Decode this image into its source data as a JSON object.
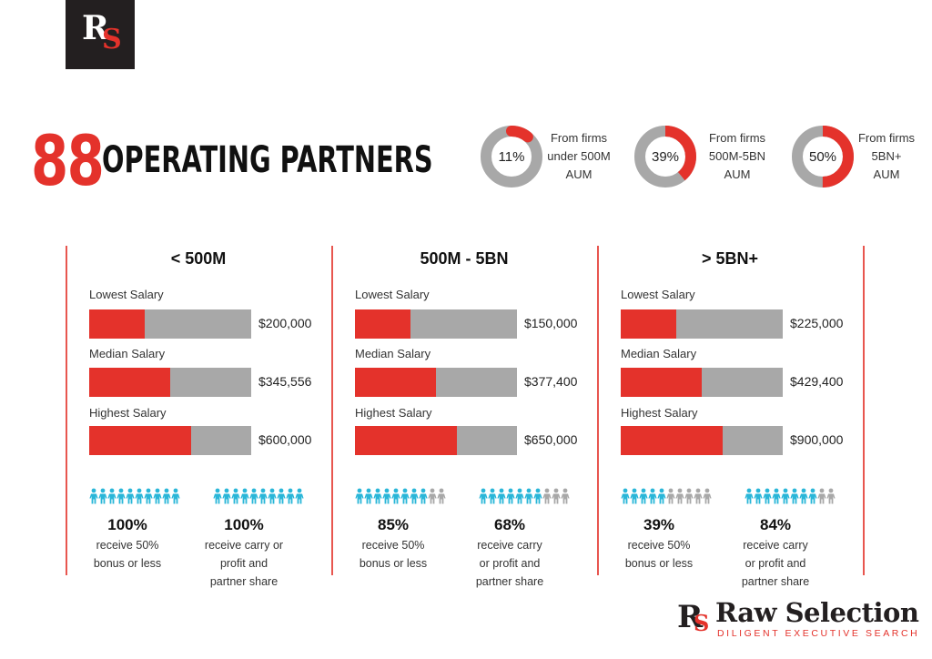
{
  "brand": {
    "logo_mark_r": "R",
    "logo_mark_s": "S",
    "name": "Raw Selection",
    "tagline": "DILIGENT EXECUTIVE SEARCH"
  },
  "headline": {
    "count": "88",
    "title": "OPERATING PARTNERS"
  },
  "colors": {
    "accent_red": "#e4322b",
    "neutral_gray": "#a8a8a8",
    "people_blue": "#29b6d8",
    "logo_dark": "#231f20"
  },
  "chart_data": [
    {
      "type": "pie",
      "title": "Operating partners by firm AUM",
      "slices": [
        {
          "label": "From firms under 500M AUM",
          "value": 11,
          "display": "11%",
          "lines": [
            "From firms",
            "under 500M",
            "AUM"
          ]
        },
        {
          "label": "From firms 500M-5BN AUM",
          "value": 39,
          "display": "39%",
          "lines": [
            "From firms",
            "500M-5BN",
            "AUM"
          ]
        },
        {
          "label": "From firms 5BN+ AUM",
          "value": 50,
          "display": "50%",
          "lines": [
            "From firms",
            "5BN+",
            "AUM"
          ]
        }
      ]
    },
    {
      "type": "bar",
      "title": "Salary by firm size",
      "categories": [
        "< 500M",
        "500M - 5BN",
        "> 5BN+"
      ],
      "row_labels": [
        "Lowest Salary",
        "Median Salary",
        "Highest Salary"
      ],
      "groups": [
        {
          "title": "< 500M",
          "rows": [
            {
              "label": "Lowest Salary",
              "value": 200000,
              "display": "$200,000",
              "fill": 0.34
            },
            {
              "label": "Median Salary",
              "value": 345556,
              "display": "$345,556",
              "fill": 0.5
            },
            {
              "label": "Highest Salary",
              "value": 600000,
              "display": "$600,000",
              "fill": 0.63
            }
          ],
          "stats": [
            {
              "pct": 100,
              "display": "100%",
              "lines": [
                "receive 50%",
                "bonus or less"
              ]
            },
            {
              "pct": 100,
              "display": "100%",
              "lines": [
                "receive carry or",
                "profit and",
                "partner share"
              ]
            }
          ],
          "icons_filled": [
            10,
            10
          ]
        },
        {
          "title": "500M - 5BN",
          "rows": [
            {
              "label": "Lowest Salary",
              "value": 150000,
              "display": "$150,000",
              "fill": 0.34
            },
            {
              "label": "Median Salary",
              "value": 377400,
              "display": "$377,400",
              "fill": 0.5
            },
            {
              "label": "Highest Salary",
              "value": 650000,
              "display": "$650,000",
              "fill": 0.63
            }
          ],
          "stats": [
            {
              "pct": 85,
              "display": "85%",
              "lines": [
                "receive 50%",
                "bonus or less"
              ]
            },
            {
              "pct": 68,
              "display": "68%",
              "lines": [
                "receive carry",
                "or profit and",
                "partner share"
              ]
            }
          ],
          "icons_filled": [
            8,
            7
          ]
        },
        {
          "title": "> 5BN+",
          "rows": [
            {
              "label": "Lowest Salary",
              "value": 225000,
              "display": "$225,000",
              "fill": 0.34
            },
            {
              "label": "Median Salary",
              "value": 429400,
              "display": "$429,400",
              "fill": 0.5
            },
            {
              "label": "Highest Salary",
              "value": 900000,
              "display": "$900,000",
              "fill": 0.63
            }
          ],
          "stats": [
            {
              "pct": 39,
              "display": "39%",
              "lines": [
                "receive 50%",
                "bonus or less"
              ]
            },
            {
              "pct": 84,
              "display": "84%",
              "lines": [
                "receive carry",
                "or profit and",
                "partner share"
              ]
            }
          ],
          "icons_filled": [
            5,
            8
          ]
        }
      ],
      "icons_total": 10
    }
  ]
}
